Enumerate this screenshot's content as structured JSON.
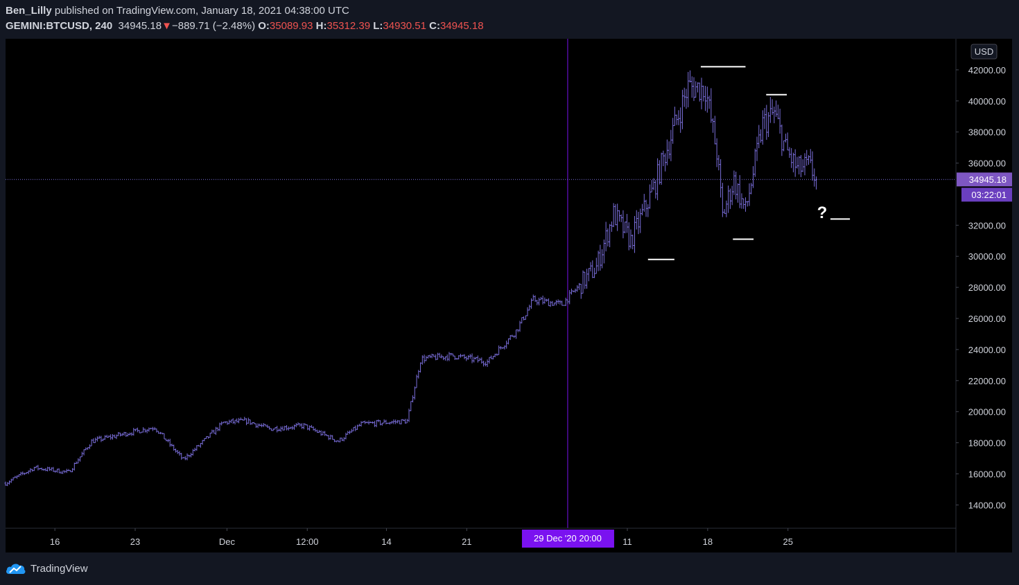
{
  "header": {
    "author": "Ben_Lilly",
    "published_text": "published on TradingView.com, January 18, 2021 04:38:00 UTC",
    "symbol": "GEMINI:BTCUSD, 240",
    "last": "34945.18",
    "change": "−889.71 (−2.48%)",
    "o_label": "O:",
    "o": "35089.93",
    "h_label": "H:",
    "h": "35312.39",
    "l_label": "L:",
    "l": "34930.51",
    "c_label": "C:",
    "c": "34945.18"
  },
  "price_axis": {
    "currency": "USD",
    "ticks": [
      {
        "v": 42000,
        "label": "42000.00"
      },
      {
        "v": 40000,
        "label": "40000.00"
      },
      {
        "v": 38000,
        "label": "38000.00"
      },
      {
        "v": 36000,
        "label": "36000.00"
      },
      {
        "v": 32000,
        "label": "32000.00"
      },
      {
        "v": 30000,
        "label": "30000.00"
      },
      {
        "v": 28000,
        "label": "28000.00"
      },
      {
        "v": 26000,
        "label": "26000.00"
      },
      {
        "v": 24000,
        "label": "24000.00"
      },
      {
        "v": 22000,
        "label": "22000.00"
      },
      {
        "v": 20000,
        "label": "20000.00"
      },
      {
        "v": 18000,
        "label": "18000.00"
      },
      {
        "v": 16000,
        "label": "16000.00"
      },
      {
        "v": 14000,
        "label": "14000.00"
      }
    ],
    "last_price_label": "34945.18",
    "countdown_label": "03:22:01"
  },
  "time_axis": {
    "ticks": [
      {
        "day": 4.3,
        "label": "16"
      },
      {
        "day": 11.3,
        "label": "23"
      },
      {
        "day": 19.3,
        "label": "Dec"
      },
      {
        "day": 26.3,
        "label": "12:00"
      },
      {
        "day": 33.2,
        "label": "14"
      },
      {
        "day": 40.2,
        "label": "21"
      },
      {
        "day": 54.2,
        "label": "11"
      },
      {
        "day": 61.2,
        "label": "18"
      },
      {
        "day": 68.2,
        "label": "25"
      }
    ],
    "crosshair_label": "29 Dec '20   20:00",
    "crosshair_day": 49.0
  },
  "annotations": {
    "question_mark": "?"
  },
  "footer": {
    "brand": "TradingView"
  },
  "colors": {
    "background": "#000000",
    "frame": "#131722",
    "candles": "#7b6fdc",
    "accent": "#7a12f0",
    "text": "#d1d4dc",
    "change_down": "#ef5350"
  },
  "chart_data": {
    "type": "ohlc",
    "title": "GEMINI:BTCUSD, 240",
    "currency": "USD",
    "ylim": [
      12500,
      44000
    ],
    "xlim_days": [
      0,
      82
    ],
    "x_axis_first_day": "Nov 11, 2020",
    "anchors": [
      {
        "day": 0,
        "price": 15400
      },
      {
        "day": 2.5,
        "price": 16400
      },
      {
        "day": 5.5,
        "price": 16100
      },
      {
        "day": 7.5,
        "price": 18100
      },
      {
        "day": 10.5,
        "price": 18600
      },
      {
        "day": 13,
        "price": 19000
      },
      {
        "day": 15.5,
        "price": 16900
      },
      {
        "day": 19,
        "price": 19300
      },
      {
        "day": 21,
        "price": 19400
      },
      {
        "day": 23,
        "price": 18900
      },
      {
        "day": 26,
        "price": 19100
      },
      {
        "day": 29,
        "price": 18100
      },
      {
        "day": 31,
        "price": 19200
      },
      {
        "day": 35,
        "price": 19400
      },
      {
        "day": 36.2,
        "price": 23400
      },
      {
        "day": 39,
        "price": 23600
      },
      {
        "day": 42,
        "price": 23200
      },
      {
        "day": 44.5,
        "price": 25200
      },
      {
        "day": 46,
        "price": 27200
      },
      {
        "day": 48.5,
        "price": 26900
      },
      {
        "day": 51.5,
        "price": 29300
      },
      {
        "day": 53,
        "price": 32700
      },
      {
        "day": 54.5,
        "price": 31000
      },
      {
        "day": 56.5,
        "price": 34400
      },
      {
        "day": 58,
        "price": 37700
      },
      {
        "day": 59.5,
        "price": 40900
      },
      {
        "day": 61,
        "price": 40800
      },
      {
        "day": 62,
        "price": 36700
      },
      {
        "day": 62.5,
        "price": 32600
      },
      {
        "day": 63.5,
        "price": 34900
      },
      {
        "day": 64.5,
        "price": 32900
      },
      {
        "day": 66,
        "price": 38500
      },
      {
        "day": 67,
        "price": 39200
      },
      {
        "day": 68,
        "price": 36900
      },
      {
        "day": 69,
        "price": 35600
      },
      {
        "day": 70,
        "price": 35800
      },
      {
        "day": 70.8,
        "price": 34945
      }
    ],
    "horizontal_lines": [
      {
        "price": 42200,
        "day_from": 60.6,
        "day_to": 64.5
      },
      {
        "price": 40400,
        "day_from": 66.3,
        "day_to": 68.1
      },
      {
        "price": 29800,
        "day_from": 56.0,
        "day_to": 58.3
      },
      {
        "price": 31100,
        "day_from": 63.4,
        "day_to": 65.2
      },
      {
        "price": 32400,
        "day_from": 71.9,
        "day_to": 73.6
      }
    ]
  }
}
